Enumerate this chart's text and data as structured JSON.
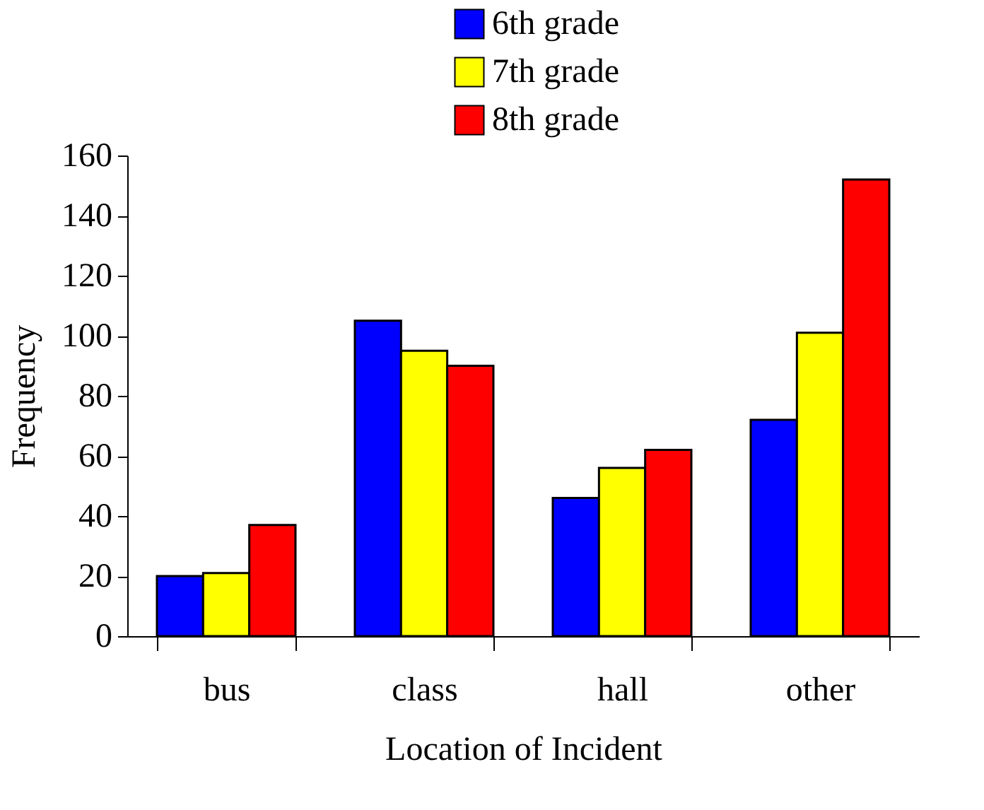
{
  "chart_data": {
    "type": "bar",
    "xlabel": "Location of Incident",
    "ylabel": "Frequency",
    "categories": [
      "bus",
      "class",
      "hall",
      "other"
    ],
    "series": [
      {
        "name": "6th grade",
        "color": "#0000ff",
        "values": [
          20,
          105,
          46,
          72
        ]
      },
      {
        "name": "7th grade",
        "color": "#ffff00",
        "values": [
          21,
          95,
          56,
          101
        ]
      },
      {
        "name": "8th grade",
        "color": "#ff0000",
        "values": [
          37,
          90,
          62,
          152
        ]
      }
    ],
    "ylim": [
      0,
      160
    ],
    "yticks": [
      0,
      20,
      40,
      60,
      80,
      100,
      120,
      140,
      160
    ],
    "grid": false,
    "legend": "top right"
  }
}
